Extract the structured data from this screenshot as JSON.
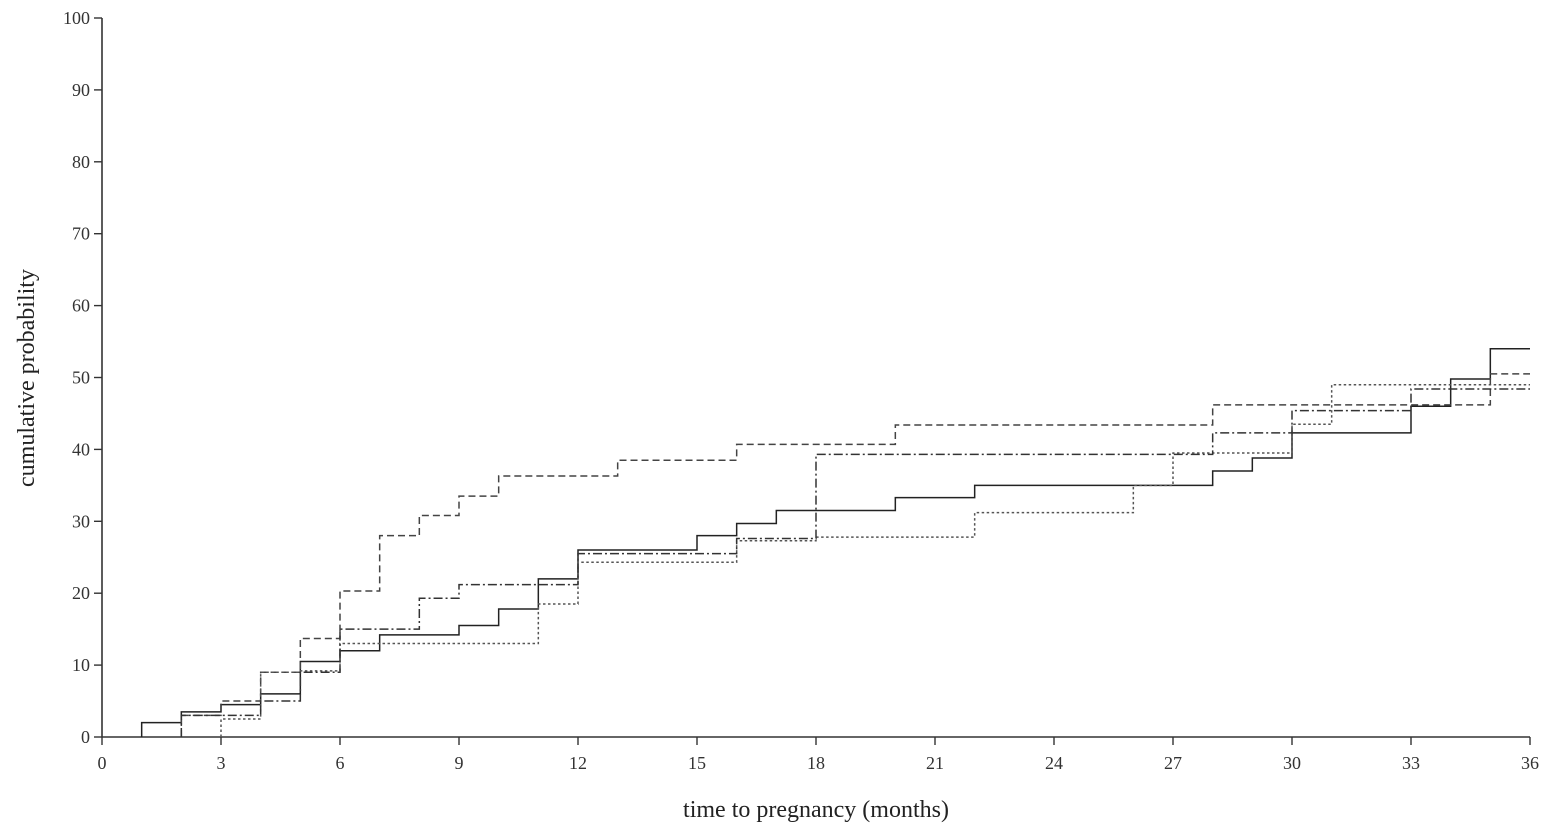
{
  "chart_data": {
    "type": "line",
    "title": "",
    "xlabel": "time to pregnancy (months)",
    "ylabel": "cumulative probability",
    "xlim": [
      0,
      36
    ],
    "ylim": [
      0,
      100
    ],
    "x_ticks": [
      0,
      3,
      6,
      9,
      12,
      15,
      18,
      21,
      24,
      27,
      30,
      33,
      36
    ],
    "y_ticks": [
      0,
      10,
      20,
      30,
      40,
      50,
      60,
      70,
      80,
      90,
      100
    ],
    "grid": false,
    "legend": "none",
    "step": true,
    "series": [
      {
        "style": "solid",
        "color": "#222222",
        "points": [
          [
            1,
            0
          ],
          [
            1,
            2
          ],
          [
            2,
            2
          ],
          [
            2,
            3.5
          ],
          [
            3,
            3.5
          ],
          [
            3,
            4.5
          ],
          [
            4,
            4.5
          ],
          [
            4,
            6
          ],
          [
            5,
            6
          ],
          [
            5,
            10.5
          ],
          [
            6,
            10.5
          ],
          [
            6,
            12
          ],
          [
            7,
            12
          ],
          [
            7,
            14.2
          ],
          [
            9,
            14.2
          ],
          [
            9,
            15.5
          ],
          [
            10,
            15.5
          ],
          [
            10,
            17.8
          ],
          [
            11,
            17.8
          ],
          [
            11,
            22
          ],
          [
            12,
            22
          ],
          [
            12,
            26
          ],
          [
            15,
            26
          ],
          [
            15,
            28
          ],
          [
            16,
            28
          ],
          [
            16,
            29.7
          ],
          [
            17,
            29.7
          ],
          [
            17,
            31.5
          ],
          [
            20,
            31.5
          ],
          [
            20,
            33.3
          ],
          [
            22,
            33.3
          ],
          [
            22,
            35
          ],
          [
            28,
            35
          ],
          [
            28,
            37
          ],
          [
            29,
            37
          ],
          [
            29,
            38.8
          ],
          [
            30,
            38.8
          ],
          [
            30,
            42.3
          ],
          [
            33,
            42.3
          ],
          [
            33,
            46
          ],
          [
            34,
            46
          ],
          [
            34,
            49.8
          ],
          [
            35,
            49.8
          ],
          [
            35,
            54
          ],
          [
            36,
            54
          ]
        ]
      },
      {
        "style": "dashed",
        "color": "#444444",
        "points": [
          [
            2,
            0
          ],
          [
            2,
            3
          ],
          [
            3,
            3
          ],
          [
            3,
            5
          ],
          [
            4,
            5
          ],
          [
            4,
            9
          ],
          [
            5,
            9
          ],
          [
            5,
            13.7
          ],
          [
            6,
            13.7
          ],
          [
            6,
            20.3
          ],
          [
            7,
            20.3
          ],
          [
            7,
            28
          ],
          [
            8,
            28
          ],
          [
            8,
            30.8
          ],
          [
            9,
            30.8
          ],
          [
            9,
            33.5
          ],
          [
            10,
            33.5
          ],
          [
            10,
            36.3
          ],
          [
            13,
            36.3
          ],
          [
            13,
            38.5
          ],
          [
            16,
            38.5
          ],
          [
            16,
            40.7
          ],
          [
            20,
            40.7
          ],
          [
            20,
            43.4
          ],
          [
            28,
            43.4
          ],
          [
            28,
            46.2
          ],
          [
            35,
            46.2
          ],
          [
            35,
            50.5
          ],
          [
            36,
            50.5
          ]
        ]
      },
      {
        "style": "dotted",
        "color": "#555555",
        "points": [
          [
            3,
            0
          ],
          [
            3,
            2.5
          ],
          [
            4,
            2.5
          ],
          [
            4,
            9
          ],
          [
            5,
            9
          ],
          [
            5,
            9.2
          ],
          [
            6,
            9.2
          ],
          [
            6,
            13
          ],
          [
            11,
            13
          ],
          [
            11,
            18.5
          ],
          [
            12,
            18.5
          ],
          [
            12,
            24.3
          ],
          [
            16,
            24.3
          ],
          [
            16,
            27.3
          ],
          [
            18,
            27.3
          ],
          [
            18,
            27.8
          ],
          [
            22,
            27.8
          ],
          [
            22,
            31.2
          ],
          [
            26,
            31.2
          ],
          [
            26,
            35
          ],
          [
            27,
            35
          ],
          [
            27,
            39.5
          ],
          [
            30,
            39.5
          ],
          [
            30,
            43.5
          ],
          [
            31,
            43.5
          ],
          [
            31,
            49
          ],
          [
            36,
            49
          ]
        ]
      },
      {
        "style": "dash-dot",
        "color": "#333333",
        "points": [
          [
            2,
            0
          ],
          [
            2,
            3
          ],
          [
            4,
            3
          ],
          [
            4,
            5
          ],
          [
            5,
            5
          ],
          [
            5,
            9
          ],
          [
            6,
            9
          ],
          [
            6,
            15
          ],
          [
            8,
            15
          ],
          [
            8,
            19.3
          ],
          [
            9,
            19.3
          ],
          [
            9,
            21.2
          ],
          [
            12,
            21.2
          ],
          [
            12,
            25.5
          ],
          [
            16,
            25.5
          ],
          [
            16,
            27.6
          ],
          [
            18,
            27.6
          ],
          [
            18,
            39.3
          ],
          [
            28,
            39.3
          ],
          [
            28,
            42.3
          ],
          [
            30,
            42.3
          ],
          [
            30,
            45.4
          ],
          [
            33,
            45.4
          ],
          [
            33,
            48.4
          ],
          [
            36,
            48.4
          ]
        ]
      }
    ]
  }
}
